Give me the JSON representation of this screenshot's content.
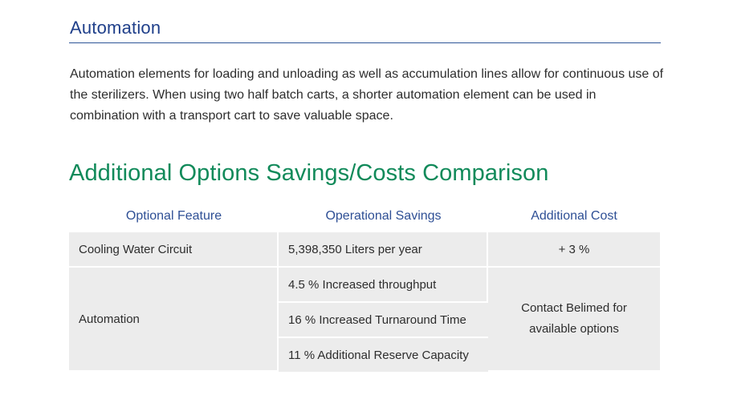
{
  "section": {
    "title": "Automation",
    "paragraph": "Automation elements for loading and unloading as well as accumulation lines allow for continuous use of the sterilizers. When using two half batch carts, a shorter automation element can be used in combination with a transport cart to save valuable space."
  },
  "comparison": {
    "title": "Additional Options Savings/Costs Comparison",
    "headers": {
      "feature": "Optional Feature",
      "savings": "Operational Savings",
      "cost": "Additional Cost"
    },
    "rows": [
      {
        "feature": "Cooling Water Circuit",
        "savings": [
          "5,398,350 Liters per year"
        ],
        "cost": "+ 3 %"
      },
      {
        "feature": "Automation",
        "savings": [
          "4.5 % Increased throughput",
          "16 % Increased Turnaround Time",
          "11 % Additional Reserve Capacity"
        ],
        "cost": "Contact Belimed for available options"
      }
    ]
  },
  "colors": {
    "section_title": "#1f3f8a",
    "comparison_title": "#118a5a",
    "table_header": "#2e4f95",
    "cell_background": "#ececec"
  }
}
